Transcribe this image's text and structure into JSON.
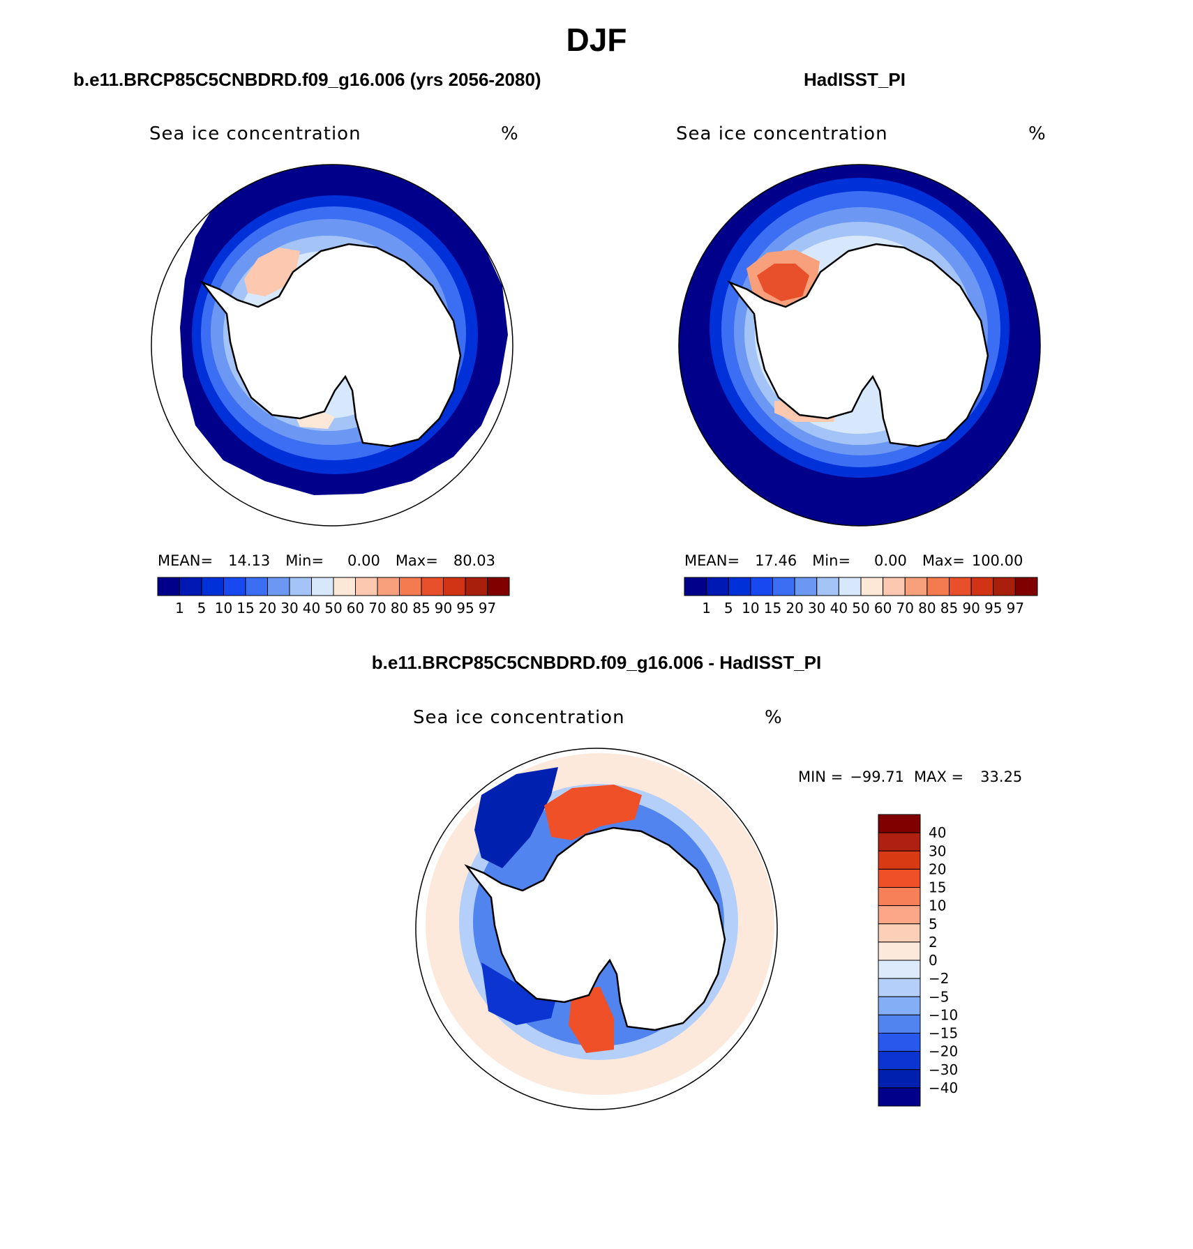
{
  "figure": {
    "title": "DJF"
  },
  "panels": [
    {
      "title": "b.e11.BRCP85C5CNBDRD.f09_g16.006 (yrs 2056-2080)",
      "variable": "Sea ice concentration",
      "unit": "%",
      "stats": {
        "mean_label": "MEAN=",
        "mean": "14.13",
        "min_label": "Min=",
        "min": "0.00",
        "max_label": "Max=",
        "max": "80.03"
      }
    },
    {
      "title": "HadISST_PI",
      "variable": "Sea ice concentration",
      "unit": "%",
      "stats": {
        "mean_label": "MEAN=",
        "mean": "17.46",
        "min_label": "Min=",
        "min": "0.00",
        "max_label": "Max=",
        "max": "100.00"
      }
    },
    {
      "title": "b.e11.BRCP85C5CNBDRD.f09_g16.006 - HadISST_PI",
      "variable": "Sea ice concentration",
      "unit": "%",
      "stats": {
        "min_label": "MIN =",
        "min": "−99.71",
        "max_label": "MAX =",
        "max": "33.25"
      }
    }
  ],
  "chart_data": [
    {
      "type": "heatmap",
      "projection": "south-polar-stereographic",
      "title": "b.e11.BRCP85C5CNBDRD.f09_g16.006 (yrs 2056-2080)",
      "subtitle": "Sea ice concentration",
      "unit": "%",
      "mean": 14.13,
      "min": 0.0,
      "max": 80.03,
      "colorbar": {
        "orientation": "horizontal",
        "levels": [
          "1",
          "5",
          "10",
          "15",
          "20",
          "30",
          "40",
          "50",
          "60",
          "70",
          "80",
          "85",
          "90",
          "95",
          "97"
        ],
        "colors": [
          "#00008b",
          "#0018b4",
          "#0030d8",
          "#1848f0",
          "#3c6ef4",
          "#6c98f4",
          "#a4c4f8",
          "#d8e8fc",
          "#fde8d8",
          "#fcc8b0",
          "#f8a07c",
          "#f47a50",
          "#e8502c",
          "#d03414",
          "#a8200c",
          "#800000"
        ]
      }
    },
    {
      "type": "heatmap",
      "projection": "south-polar-stereographic",
      "title": "HadISST_PI",
      "subtitle": "Sea ice concentration",
      "unit": "%",
      "mean": 17.46,
      "min": 0.0,
      "max": 100.0,
      "colorbar": {
        "orientation": "horizontal",
        "levels": [
          "1",
          "5",
          "10",
          "15",
          "20",
          "30",
          "40",
          "50",
          "60",
          "70",
          "80",
          "85",
          "90",
          "95",
          "97"
        ],
        "colors": [
          "#00008b",
          "#0018b4",
          "#0030d8",
          "#1848f0",
          "#3c6ef4",
          "#6c98f4",
          "#a4c4f8",
          "#d8e8fc",
          "#fde8d8",
          "#fcc8b0",
          "#f8a07c",
          "#f47a50",
          "#e8502c",
          "#d03414",
          "#a8200c",
          "#800000"
        ]
      }
    },
    {
      "type": "heatmap",
      "projection": "south-polar-stereographic",
      "title": "b.e11.BRCP85C5CNBDRD.f09_g16.006 - HadISST_PI",
      "subtitle": "Sea ice concentration",
      "unit": "%",
      "min": -99.71,
      "max": 33.25,
      "colorbar": {
        "orientation": "vertical",
        "levels": [
          "40",
          "30",
          "20",
          "15",
          "10",
          "5",
          "2",
          "0",
          "−2",
          "−5",
          "−10",
          "−15",
          "−20",
          "−30",
          "−40"
        ],
        "colors": [
          "#800000",
          "#b02010",
          "#d83a14",
          "#f05028",
          "#f88058",
          "#fca888",
          "#fcd0b8",
          "#fde9dc",
          "#dceafc",
          "#b4d0fa",
          "#84aef6",
          "#5284f0",
          "#2858ec",
          "#0c34d0",
          "#0020b0",
          "#00008b"
        ]
      }
    }
  ]
}
